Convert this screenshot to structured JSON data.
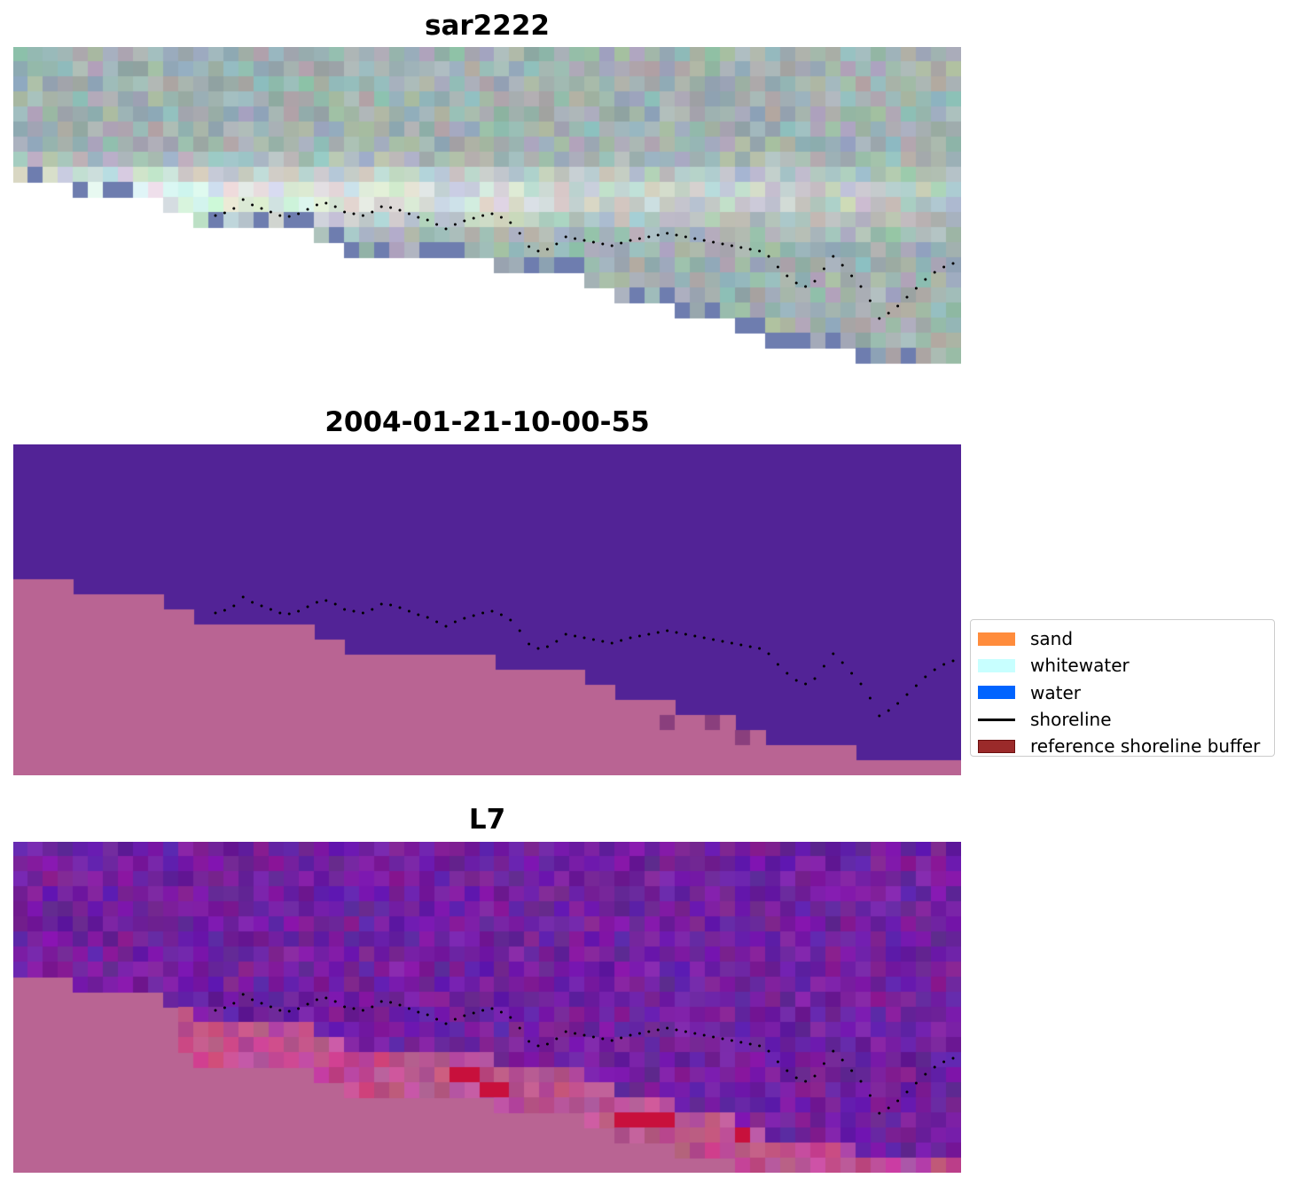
{
  "panels": [
    {
      "title": "sar2222",
      "kind": "rgb"
    },
    {
      "title": "2004-01-21-10-00-55",
      "kind": "classified"
    },
    {
      "title": "L7",
      "kind": "mndwi"
    }
  ],
  "legend": {
    "items": [
      {
        "label": "sand",
        "color": "#ff8c3c",
        "type": "patch"
      },
      {
        "label": "whitewater",
        "color": "#c8ffff",
        "type": "patch"
      },
      {
        "label": "water",
        "color": "#0064ff",
        "type": "patch"
      },
      {
        "label": "shoreline",
        "color": "#000000",
        "type": "line"
      },
      {
        "label": "reference shoreline buffer",
        "color": "#9b2a2a",
        "type": "patch"
      }
    ]
  },
  "colors": {
    "land_pink": "#b96493",
    "classified_water": "#522396",
    "mndwi_purple": "#6a1d96",
    "buffer_red": "#c8103c"
  }
}
